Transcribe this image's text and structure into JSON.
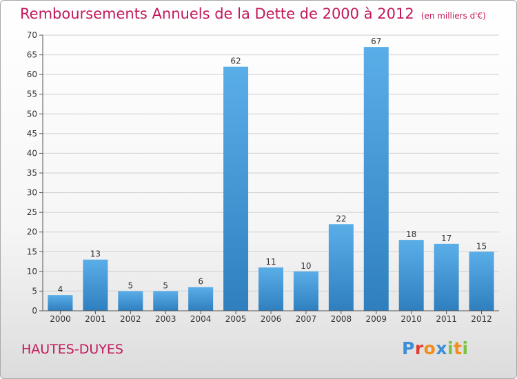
{
  "header": {
    "title": "Remboursements Annuels de la Dette de 2000 à 2012",
    "unit": "(en milliers d'€)"
  },
  "footer": {
    "commune": "HAUTES-DUYES",
    "logo": "Proxiti",
    "logo_colors": [
      "#3b8fd6",
      "#e23b2e",
      "#f28c1a",
      "#3b8fd6",
      "#7cc242",
      "#f28c1a",
      "#7cc242"
    ]
  },
  "colors": {
    "title": "#c2185b",
    "bar_light": "#5aaee8",
    "bar_dark": "#2f7fbf",
    "grid": "#cfcfcf",
    "axis": "#555555"
  },
  "chart_data": {
    "type": "bar",
    "categories": [
      "2000",
      "2001",
      "2002",
      "2003",
      "2004",
      "2005",
      "2006",
      "2007",
      "2008",
      "2009",
      "2010",
      "2011",
      "2012"
    ],
    "values": [
      4,
      13,
      5,
      5,
      6,
      62,
      11,
      10,
      22,
      67,
      18,
      17,
      15
    ],
    "title": "Remboursements Annuels de la Dette de 2000 à 2012",
    "subtitle": "(en milliers d'€)",
    "xlabel": "",
    "ylabel": "",
    "ylim": [
      0,
      70
    ],
    "yticks": [
      0,
      5,
      10,
      15,
      20,
      25,
      30,
      35,
      40,
      45,
      50,
      55,
      60,
      65,
      70
    ],
    "grid": true,
    "data_labels": true
  }
}
